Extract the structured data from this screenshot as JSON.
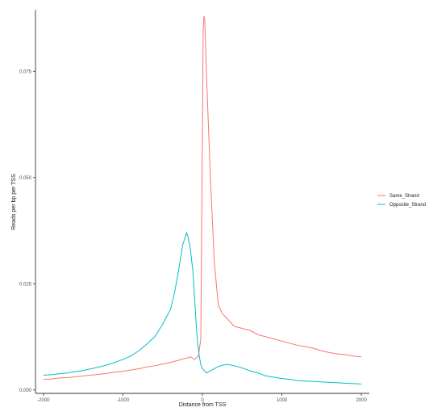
{
  "chart_data": {
    "type": "line",
    "title": "",
    "xlabel": "Distance from TSS",
    "ylabel": "Reads per bp per TSS",
    "xlim": [
      -2100,
      2100
    ],
    "ylim": [
      -0.0008,
      0.0895
    ],
    "x_ticks": [
      -2000,
      -1000,
      0,
      1000,
      2000
    ],
    "x_tick_labels": [
      "-2000",
      "-1000",
      "0",
      "1000",
      "2000"
    ],
    "y_ticks": [
      0.0,
      0.025,
      0.05,
      0.075
    ],
    "y_tick_labels": [
      "0.000",
      "0.025",
      "0.050",
      "0.075"
    ],
    "grid": false,
    "legend_position": "right",
    "series": [
      {
        "name": "Same_Strand",
        "color": "#F8766D",
        "x": [
          -2000,
          -1900,
          -1800,
          -1700,
          -1600,
          -1500,
          -1400,
          -1300,
          -1200,
          -1100,
          -1000,
          -900,
          -800,
          -700,
          -600,
          -500,
          -400,
          -300,
          -250,
          -200,
          -150,
          -100,
          -50,
          -20,
          0,
          10,
          20,
          30,
          50,
          100,
          150,
          200,
          250,
          300,
          400,
          500,
          600,
          700,
          800,
          900,
          1000,
          1100,
          1200,
          1300,
          1400,
          1500,
          1600,
          1700,
          1800,
          1900,
          2000
        ],
        "y": [
          0.0025,
          0.0026,
          0.0028,
          0.0029,
          0.0031,
          0.0033,
          0.0035,
          0.0037,
          0.0039,
          0.0042,
          0.0044,
          0.0047,
          0.005,
          0.0054,
          0.0057,
          0.0061,
          0.0065,
          0.007,
          0.0073,
          0.0075,
          0.0078,
          0.0072,
          0.008,
          0.012,
          0.06,
          0.085,
          0.088,
          0.087,
          0.075,
          0.05,
          0.03,
          0.02,
          0.018,
          0.017,
          0.015,
          0.0145,
          0.014,
          0.013,
          0.0125,
          0.012,
          0.0115,
          0.011,
          0.0105,
          0.0102,
          0.0098,
          0.0092,
          0.0088,
          0.0085,
          0.0083,
          0.008,
          0.0078
        ]
      },
      {
        "name": "Opposite_Strand",
        "color": "#00BFC4",
        "x": [
          -2000,
          -1900,
          -1800,
          -1700,
          -1600,
          -1500,
          -1400,
          -1300,
          -1200,
          -1100,
          -1000,
          -900,
          -800,
          -700,
          -600,
          -500,
          -400,
          -350,
          -300,
          -250,
          -200,
          -180,
          -150,
          -120,
          -100,
          -80,
          -60,
          -40,
          -20,
          0,
          50,
          100,
          150,
          200,
          250,
          300,
          350,
          400,
          500,
          600,
          700,
          800,
          900,
          1000,
          1100,
          1200,
          1300,
          1400,
          1500,
          1600,
          1700,
          1800,
          1900,
          2000
        ],
        "y": [
          0.0035,
          0.0036,
          0.0038,
          0.004,
          0.0043,
          0.0046,
          0.005,
          0.0054,
          0.0059,
          0.0065,
          0.0072,
          0.008,
          0.0092,
          0.0108,
          0.0125,
          0.0155,
          0.019,
          0.023,
          0.028,
          0.034,
          0.037,
          0.036,
          0.033,
          0.028,
          0.022,
          0.016,
          0.011,
          0.008,
          0.006,
          0.005,
          0.004,
          0.0045,
          0.005,
          0.0055,
          0.0058,
          0.006,
          0.0059,
          0.0057,
          0.0052,
          0.0045,
          0.004,
          0.0033,
          0.003,
          0.0027,
          0.0025,
          0.0022,
          0.0021,
          0.002,
          0.0019,
          0.0018,
          0.0017,
          0.0016,
          0.0015,
          0.0014
        ]
      }
    ]
  }
}
